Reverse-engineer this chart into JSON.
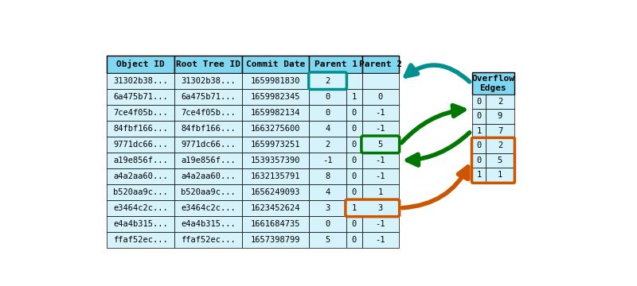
{
  "main_table": {
    "rows": [
      [
        "31302b38...",
        "31302b38...",
        "1659981830",
        "2",
        "",
        ""
      ],
      [
        "6a475b71...",
        "6a475b71...",
        "1659982345",
        "0",
        "1",
        "0"
      ],
      [
        "7ce4f05b...",
        "7ce4f05b...",
        "1659982134",
        "0",
        "0",
        "-1"
      ],
      [
        "84fbf166...",
        "84fbf166...",
        "1663275600",
        "4",
        "0",
        "-1"
      ],
      [
        "9771dc66...",
        "9771dc66...",
        "1659973251",
        "2",
        "0",
        "5"
      ],
      [
        "a19e856f...",
        "a19e856f...",
        "1539357390",
        "-1",
        "0",
        "-1"
      ],
      [
        "a4a2aa60...",
        "a4a2aa60...",
        "1632135791",
        "8",
        "0",
        "-1"
      ],
      [
        "b520aa9c...",
        "b520aa9c...",
        "1656249093",
        "4",
        "0",
        "1"
      ],
      [
        "e3464c2c...",
        "e3464c2c...",
        "1623452624",
        "3",
        "1",
        "3"
      ],
      [
        "e4a4b315...",
        "e4a4b315...",
        "1661684735",
        "0",
        "0",
        "-1"
      ],
      [
        "ffaf52ec...",
        "ffaf52ec...",
        "1657398799",
        "5",
        "0",
        "-1"
      ]
    ]
  },
  "overflow_table": {
    "header": "Overflow\nEdges",
    "rows": [
      [
        "0",
        "2"
      ],
      [
        "0",
        "9"
      ],
      [
        "1",
        "7"
      ],
      [
        "0",
        "2"
      ],
      [
        "0",
        "5"
      ],
      [
        "1",
        "1"
      ]
    ]
  },
  "header_bg": "#7fd8f0",
  "cell_bg": "#d6f3fc",
  "teal_color": "#009090",
  "green_color": "#007700",
  "orange_color": "#cc5500"
}
